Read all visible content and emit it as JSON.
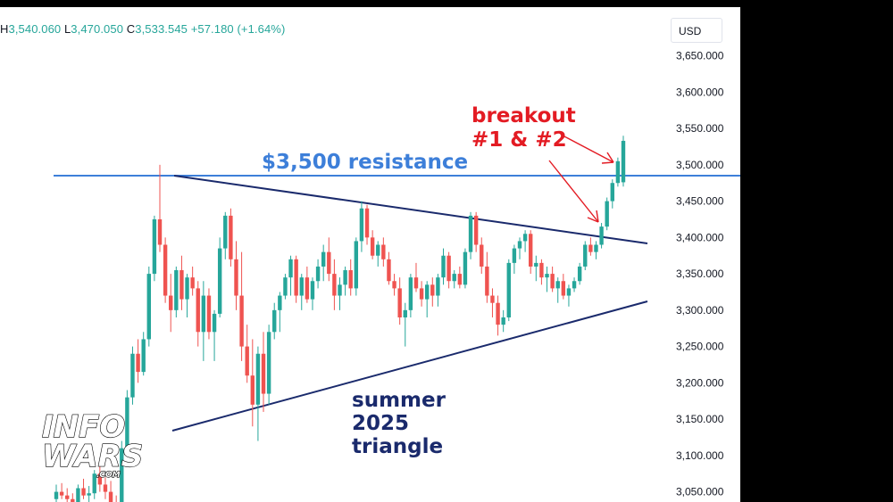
{
  "header": {
    "ohlc_partial": "H",
    "high": "3,540.060",
    "low_label": "L",
    "low": "3,470.050",
    "close_label": "C",
    "close": "3,533.545",
    "change": "+57.180 (+1.64%)",
    "currency": "USD",
    "up_color": "#26a69a",
    "down_color": "#ef5350"
  },
  "logo": {
    "line1": "INFO",
    "line2": "WARS",
    "suffix": ".COM"
  },
  "chart_data": {
    "type": "candlestick",
    "price_axis": {
      "ticks": [
        3050,
        3100,
        3150,
        3200,
        3250,
        3300,
        3350,
        3400,
        3450,
        3500,
        3550,
        3600,
        3650
      ],
      "tick_labels": [
        "3,050.000",
        "3,100.000",
        "3,150.000",
        "3,200.000",
        "3,250.000",
        "3,300.000",
        "3,350.000",
        "3,400.000",
        "3,450.000",
        "3,500.000",
        "3,550.000",
        "3,600.000",
        "3,650.000"
      ],
      "range": [
        3036,
        3717
      ]
    },
    "annotations": {
      "resistance_label": "$3,500 resistance",
      "resistance_level": 3500,
      "resistance_color": "#3d7fd9",
      "breakout_line1": "breakout",
      "breakout_line2": "#1 & #2",
      "triangle_line1": "summer",
      "triangle_line2": "2025",
      "triangle_line3": "triangle",
      "trendline_color": "#1a2a6c",
      "arrow_color": "#e31b23"
    },
    "candles": [
      [
        3040,
        3060,
        3035,
        3050
      ],
      [
        3050,
        3062,
        3040,
        3045
      ],
      [
        3045,
        3055,
        3030,
        3040
      ],
      [
        3040,
        3048,
        3020,
        3025
      ],
      [
        3025,
        3060,
        3020,
        3055
      ],
      [
        3055,
        3068,
        3040,
        3045
      ],
      [
        3045,
        3058,
        3030,
        3048
      ],
      [
        3048,
        3080,
        3040,
        3075
      ],
      [
        3075,
        3085,
        3050,
        3060
      ],
      [
        3060,
        3070,
        3040,
        3050
      ],
      [
        3050,
        3065,
        3030,
        3035
      ],
      [
        3035,
        3045,
        3020,
        3030
      ],
      [
        3030,
        3120,
        3025,
        3110
      ],
      [
        3110,
        3190,
        3105,
        3180
      ],
      [
        3180,
        3250,
        3170,
        3240
      ],
      [
        3240,
        3260,
        3200,
        3215
      ],
      [
        3215,
        3270,
        3210,
        3260
      ],
      [
        3260,
        3360,
        3250,
        3350
      ],
      [
        3350,
        3430,
        3340,
        3425
      ],
      [
        3425,
        3500,
        3380,
        3390
      ],
      [
        3390,
        3400,
        3310,
        3320
      ],
      [
        3320,
        3350,
        3270,
        3300
      ],
      [
        3300,
        3360,
        3290,
        3355
      ],
      [
        3355,
        3375,
        3300,
        3315
      ],
      [
        3315,
        3350,
        3290,
        3345
      ],
      [
        3345,
        3360,
        3320,
        3330
      ],
      [
        3330,
        3340,
        3250,
        3270
      ],
      [
        3270,
        3340,
        3230,
        3320
      ],
      [
        3320,
        3330,
        3260,
        3270
      ],
      [
        3270,
        3300,
        3230,
        3295
      ],
      [
        3295,
        3400,
        3290,
        3385
      ],
      [
        3385,
        3435,
        3370,
        3430
      ],
      [
        3430,
        3440,
        3360,
        3370
      ],
      [
        3370,
        3395,
        3300,
        3320
      ],
      [
        3320,
        3380,
        3230,
        3250
      ],
      [
        3250,
        3280,
        3200,
        3210
      ],
      [
        3210,
        3260,
        3140,
        3170
      ],
      [
        3170,
        3250,
        3120,
        3240
      ],
      [
        3240,
        3270,
        3160,
        3185
      ],
      [
        3185,
        3280,
        3170,
        3270
      ],
      [
        3270,
        3310,
        3260,
        3300
      ],
      [
        3300,
        3325,
        3270,
        3320
      ],
      [
        3320,
        3350,
        3315,
        3345
      ],
      [
        3345,
        3375,
        3320,
        3370
      ],
      [
        3370,
        3375,
        3310,
        3320
      ],
      [
        3320,
        3350,
        3300,
        3345
      ],
      [
        3345,
        3360,
        3310,
        3315
      ],
      [
        3315,
        3345,
        3300,
        3340
      ],
      [
        3340,
        3370,
        3330,
        3360
      ],
      [
        3360,
        3390,
        3340,
        3380
      ],
      [
        3380,
        3400,
        3340,
        3350
      ],
      [
        3350,
        3370,
        3300,
        3320
      ],
      [
        3320,
        3345,
        3300,
        3335
      ],
      [
        3335,
        3360,
        3320,
        3355
      ],
      [
        3355,
        3370,
        3320,
        3330
      ],
      [
        3330,
        3400,
        3320,
        3395
      ],
      [
        3395,
        3450,
        3380,
        3440
      ],
      [
        3440,
        3445,
        3390,
        3400
      ],
      [
        3400,
        3410,
        3370,
        3375
      ],
      [
        3375,
        3395,
        3360,
        3390
      ],
      [
        3390,
        3400,
        3360,
        3370
      ],
      [
        3370,
        3380,
        3335,
        3340
      ],
      [
        3340,
        3350,
        3320,
        3330
      ],
      [
        3330,
        3345,
        3280,
        3290
      ],
      [
        3290,
        3310,
        3250,
        3300
      ],
      [
        3300,
        3350,
        3290,
        3345
      ],
      [
        3345,
        3365,
        3325,
        3330
      ],
      [
        3330,
        3340,
        3305,
        3315
      ],
      [
        3315,
        3340,
        3290,
        3335
      ],
      [
        3335,
        3345,
        3305,
        3320
      ],
      [
        3320,
        3350,
        3305,
        3345
      ],
      [
        3345,
        3385,
        3335,
        3375
      ],
      [
        3375,
        3380,
        3330,
        3340
      ],
      [
        3340,
        3355,
        3330,
        3350
      ],
      [
        3350,
        3360,
        3330,
        3335
      ],
      [
        3335,
        3385,
        3330,
        3380
      ],
      [
        3380,
        3435,
        3370,
        3430
      ],
      [
        3430,
        3435,
        3380,
        3390
      ],
      [
        3390,
        3400,
        3350,
        3360
      ],
      [
        3360,
        3380,
        3310,
        3320
      ],
      [
        3320,
        3330,
        3290,
        3310
      ],
      [
        3310,
        3320,
        3265,
        3280
      ],
      [
        3280,
        3300,
        3270,
        3290
      ],
      [
        3290,
        3370,
        3285,
        3365
      ],
      [
        3365,
        3390,
        3350,
        3385
      ],
      [
        3385,
        3400,
        3370,
        3395
      ],
      [
        3395,
        3410,
        3380,
        3405
      ],
      [
        3405,
        3410,
        3350,
        3360
      ],
      [
        3360,
        3375,
        3340,
        3365
      ],
      [
        3365,
        3370,
        3335,
        3345
      ],
      [
        3345,
        3360,
        3325,
        3350
      ],
      [
        3350,
        3360,
        3325,
        3330
      ],
      [
        3330,
        3345,
        3310,
        3340
      ],
      [
        3340,
        3350,
        3315,
        3320
      ],
      [
        3320,
        3335,
        3305,
        3330
      ],
      [
        3330,
        3345,
        3325,
        3340
      ],
      [
        3340,
        3365,
        3335,
        3360
      ],
      [
        3360,
        3395,
        3355,
        3390
      ],
      [
        3390,
        3400,
        3375,
        3380
      ],
      [
        3380,
        3395,
        3370,
        3390
      ],
      [
        3390,
        3420,
        3385,
        3415
      ],
      [
        3415,
        3455,
        3410,
        3450
      ],
      [
        3450,
        3480,
        3440,
        3475
      ],
      [
        3475,
        3510,
        3470,
        3505
      ],
      [
        3476,
        3540,
        3470,
        3533
      ]
    ]
  }
}
